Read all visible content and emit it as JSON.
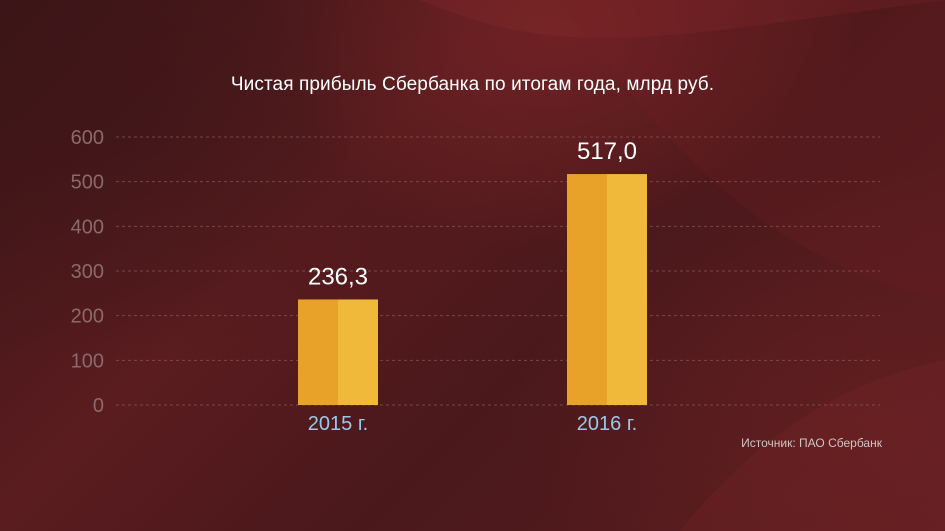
{
  "chart_data": {
    "type": "bar",
    "title": "Чистая прибыль Сбербанка по итогам года, млрд руб.",
    "categories": [
      "2015 г.",
      "2016 г."
    ],
    "values": [
      236.3,
      517.0
    ],
    "value_labels": [
      "236,3",
      "517,0"
    ],
    "yticks": [
      "0",
      "100",
      "200",
      "300",
      "400",
      "500",
      "600"
    ],
    "ylim": [
      0,
      600
    ],
    "grid": true,
    "source": "Источник: ПАО Сбербанк"
  },
  "colors": {
    "bar_left": "#e8a22a",
    "bar_right": "#f0b93a",
    "tick_label": "#8a6a6a",
    "category_label": "#9cc8e8",
    "value_label": "#ffffff",
    "grid": "#8a5a5a"
  }
}
